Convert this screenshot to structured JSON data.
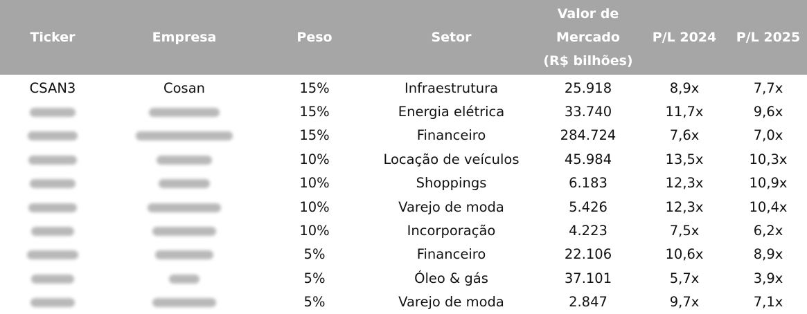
{
  "headers": {
    "ticker": "Ticker",
    "empresa": "Empresa",
    "peso": "Peso",
    "setor": "Setor",
    "valor_line1": "Valor de",
    "valor_line2": "Mercado",
    "valor_line3": "(R$ bilhões)",
    "pl2024": "P/L 2024",
    "pl2025": "P/L 2025"
  },
  "rows": [
    {
      "ticker": "CSAN3",
      "empresa": "Cosan",
      "peso": "15%",
      "setor": "Infraestrutura",
      "valor": "25.918",
      "pl2024": "8,9x",
      "pl2025": "7,7x"
    },
    {
      "ticker": "",
      "empresa": "",
      "peso": "15%",
      "setor": "Energia elétrica",
      "valor": "33.740",
      "pl2024": "11,7x",
      "pl2025": "9,6x"
    },
    {
      "ticker": "",
      "empresa": "",
      "peso": "15%",
      "setor": "Financeiro",
      "valor": "284.724",
      "pl2024": "7,6x",
      "pl2025": "7,0x"
    },
    {
      "ticker": "",
      "empresa": "",
      "peso": "10%",
      "setor": "Locação de veículos",
      "valor": "45.984",
      "pl2024": "13,5x",
      "pl2025": "10,3x"
    },
    {
      "ticker": "",
      "empresa": "",
      "peso": "10%",
      "setor": "Shoppings",
      "valor": "6.183",
      "pl2024": "12,3x",
      "pl2025": "10,9x"
    },
    {
      "ticker": "",
      "empresa": "",
      "peso": "10%",
      "setor": "Varejo de moda",
      "valor": "5.426",
      "pl2024": "12,3x",
      "pl2025": "10,4x"
    },
    {
      "ticker": "",
      "empresa": "",
      "peso": "10%",
      "setor": "Incorporação",
      "valor": "4.223",
      "pl2024": "7,5x",
      "pl2025": "6,2x"
    },
    {
      "ticker": "",
      "empresa": "",
      "peso": "5%",
      "setor": "Financeiro",
      "valor": "22.106",
      "pl2024": "10,6x",
      "pl2025": "8,9x"
    },
    {
      "ticker": "",
      "empresa": "",
      "peso": "5%",
      "setor": "Óleo & gás",
      "valor": "37.101",
      "pl2024": "5,7x",
      "pl2025": "3,9x"
    },
    {
      "ticker": "",
      "empresa": "",
      "peso": "5%",
      "setor": "Varejo de moda",
      "valor": "2.847",
      "pl2024": "9,7x",
      "pl2025": "7,1x"
    }
  ],
  "colors": {
    "header_bg": "#a6a6a6",
    "header_text": "#ffffff",
    "redaction": "#b9b9b9"
  }
}
